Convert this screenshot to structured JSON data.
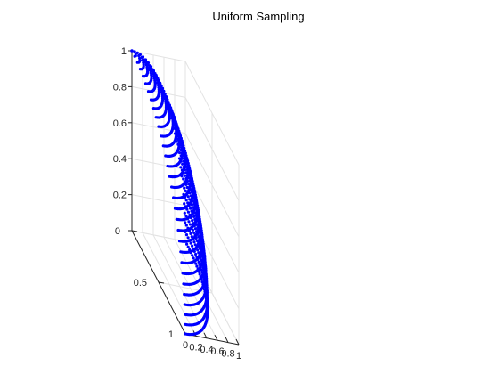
{
  "window": {
    "title": "Uniform Sampling"
  },
  "chart_data": {
    "type": "scatter",
    "title": "Uniform Sampling",
    "projection": "3d",
    "surface": "unit-sphere-first-octant",
    "series": [
      {
        "rings": 30,
        "azimuth_range_deg": [
          0,
          90
        ],
        "polar_range_deg": [
          0,
          90
        ]
      }
    ],
    "xlim": [
      0,
      1
    ],
    "ylim": [
      0,
      1
    ],
    "zlim": [
      0,
      1
    ],
    "x_ticks": [
      "0",
      "0.2",
      "0.4",
      "0.6",
      "0.8",
      "1"
    ],
    "y_ticks": [
      "0",
      "0.5",
      "1"
    ],
    "z_ticks": [
      "0",
      "0.2",
      "0.4",
      "0.6",
      "0.8",
      "1"
    ],
    "grid": true,
    "marker_color": "#0000ff",
    "axis_color": "#262626",
    "grid_color": "#e3e3e3"
  }
}
